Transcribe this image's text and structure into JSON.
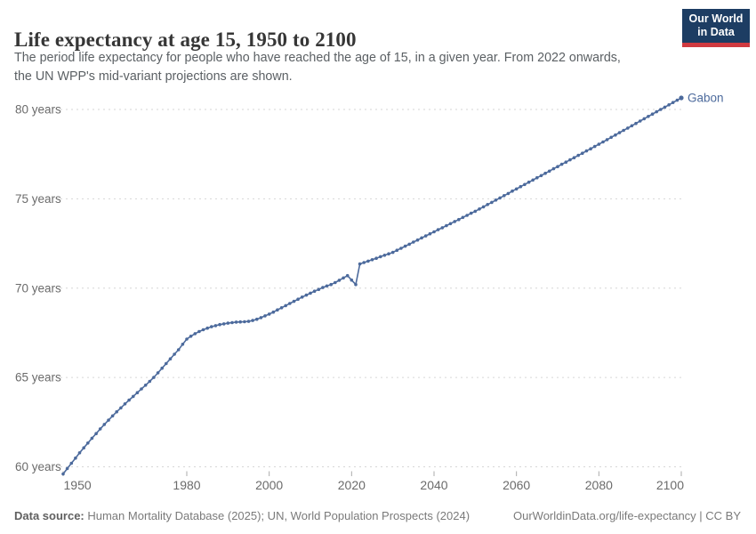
{
  "header": {
    "title": "Life expectancy at age 15, 1950 to 2100",
    "subtitle_line1": "The period life expectancy for people who have reached the age of 15, in a given year. From 2022 onwards,",
    "subtitle_line2": "the UN WPP's mid-variant projections are shown."
  },
  "logo": {
    "line1": "Our World",
    "line2": "in Data",
    "bg_color": "#1d3d63",
    "bar_color": "#d03a40"
  },
  "footer": {
    "datasource_label": "Data source:",
    "datasource_text": " Human Mortality Database (2025); UN, World Population Prospects (2024)",
    "link_text": "OurWorldinData.org/life-expectancy | CC BY"
  },
  "chart_data": {
    "type": "line",
    "title": "Life expectancy at age 15, 1950 to 2100",
    "entity_label": "Gabon",
    "line_color": "#4C6A9C",
    "grid_color": "#d6d6d6",
    "tick_color": "#ababab",
    "axis_text_color": "#6b6b6b",
    "legend_position": "end-of-line",
    "grid": "dashed-horizontal",
    "x_axis": {
      "min": 1950,
      "max": 2100,
      "ticks": [
        1950,
        1980,
        2000,
        2020,
        2040,
        2060,
        2080,
        2100
      ]
    },
    "y_axis": {
      "min": 59.5,
      "max": 81,
      "ticks": [
        60,
        65,
        70,
        75,
        80
      ],
      "tick_labels": [
        "60 years",
        "65 years",
        "70 years",
        "75 years",
        "80 years"
      ]
    },
    "series": [
      {
        "name": "Gabon",
        "points": [
          [
            1950,
            59.6
          ],
          [
            1951,
            59.9
          ],
          [
            1952,
            60.2
          ],
          [
            1953,
            60.49
          ],
          [
            1954,
            60.78
          ],
          [
            1955,
            61.06
          ],
          [
            1956,
            61.33
          ],
          [
            1957,
            61.6
          ],
          [
            1958,
            61.86
          ],
          [
            1959,
            62.12
          ],
          [
            1960,
            62.37
          ],
          [
            1961,
            62.61
          ],
          [
            1962,
            62.85
          ],
          [
            1963,
            63.08
          ],
          [
            1964,
            63.3
          ],
          [
            1965,
            63.52
          ],
          [
            1966,
            63.73
          ],
          [
            1967,
            63.94
          ],
          [
            1968,
            64.15
          ],
          [
            1969,
            64.36
          ],
          [
            1970,
            64.57
          ],
          [
            1971,
            64.78
          ],
          [
            1972,
            65.0
          ],
          [
            1973,
            65.26
          ],
          [
            1974,
            65.52
          ],
          [
            1975,
            65.78
          ],
          [
            1976,
            66.04
          ],
          [
            1977,
            66.3
          ],
          [
            1978,
            66.55
          ],
          [
            1979,
            66.86
          ],
          [
            1980,
            67.15
          ],
          [
            1981,
            67.31
          ],
          [
            1982,
            67.45
          ],
          [
            1983,
            67.57
          ],
          [
            1984,
            67.67
          ],
          [
            1985,
            67.76
          ],
          [
            1986,
            67.84
          ],
          [
            1987,
            67.9
          ],
          [
            1988,
            67.96
          ],
          [
            1989,
            68.0
          ],
          [
            1990,
            68.04
          ],
          [
            1991,
            68.07
          ],
          [
            1992,
            68.1
          ],
          [
            1993,
            68.11
          ],
          [
            1994,
            68.12
          ],
          [
            1995,
            68.14
          ],
          [
            1996,
            68.19
          ],
          [
            1997,
            68.26
          ],
          [
            1998,
            68.35
          ],
          [
            1999,
            68.45
          ],
          [
            2000,
            68.55
          ],
          [
            2001,
            68.66
          ],
          [
            2002,
            68.78
          ],
          [
            2003,
            68.9
          ],
          [
            2004,
            69.02
          ],
          [
            2005,
            69.14
          ],
          [
            2006,
            69.26
          ],
          [
            2007,
            69.38
          ],
          [
            2008,
            69.5
          ],
          [
            2009,
            69.61
          ],
          [
            2010,
            69.72
          ],
          [
            2011,
            69.83
          ],
          [
            2012,
            69.93
          ],
          [
            2013,
            70.03
          ],
          [
            2014,
            70.12
          ],
          [
            2015,
            70.2
          ],
          [
            2016,
            70.31
          ],
          [
            2017,
            70.44
          ],
          [
            2018,
            70.57
          ],
          [
            2019,
            70.7
          ],
          [
            2020,
            70.45
          ],
          [
            2021,
            70.2
          ],
          [
            2022,
            71.35
          ],
          [
            2023,
            71.43
          ],
          [
            2024,
            71.51
          ],
          [
            2025,
            71.59
          ],
          [
            2026,
            71.67
          ],
          [
            2027,
            71.76
          ],
          [
            2028,
            71.84
          ],
          [
            2029,
            71.92
          ],
          [
            2030,
            72.0
          ],
          [
            2031,
            72.12
          ],
          [
            2032,
            72.23
          ],
          [
            2033,
            72.35
          ],
          [
            2034,
            72.46
          ],
          [
            2035,
            72.58
          ],
          [
            2036,
            72.69
          ],
          [
            2037,
            72.81
          ],
          [
            2038,
            72.92
          ],
          [
            2039,
            73.04
          ],
          [
            2040,
            73.15
          ],
          [
            2041,
            73.27
          ],
          [
            2042,
            73.38
          ],
          [
            2043,
            73.5
          ],
          [
            2044,
            73.61
          ],
          [
            2045,
            73.73
          ],
          [
            2046,
            73.84
          ],
          [
            2047,
            73.96
          ],
          [
            2048,
            74.07
          ],
          [
            2049,
            74.19
          ],
          [
            2050,
            74.3
          ],
          [
            2051,
            74.43
          ],
          [
            2052,
            74.55
          ],
          [
            2053,
            74.68
          ],
          [
            2054,
            74.8
          ],
          [
            2055,
            74.93
          ],
          [
            2056,
            75.05
          ],
          [
            2057,
            75.18
          ],
          [
            2058,
            75.3
          ],
          [
            2059,
            75.43
          ],
          [
            2060,
            75.55
          ],
          [
            2061,
            75.68
          ],
          [
            2062,
            75.8
          ],
          [
            2063,
            75.93
          ],
          [
            2064,
            76.05
          ],
          [
            2065,
            76.18
          ],
          [
            2066,
            76.3
          ],
          [
            2067,
            76.43
          ],
          [
            2068,
            76.55
          ],
          [
            2069,
            76.68
          ],
          [
            2070,
            76.8
          ],
          [
            2071,
            76.93
          ],
          [
            2072,
            77.05
          ],
          [
            2073,
            77.18
          ],
          [
            2074,
            77.3
          ],
          [
            2075,
            77.43
          ],
          [
            2076,
            77.55
          ],
          [
            2077,
            77.68
          ],
          [
            2078,
            77.8
          ],
          [
            2079,
            77.93
          ],
          [
            2080,
            78.05
          ],
          [
            2081,
            78.18
          ],
          [
            2082,
            78.31
          ],
          [
            2083,
            78.44
          ],
          [
            2084,
            78.57
          ],
          [
            2085,
            78.7
          ],
          [
            2086,
            78.83
          ],
          [
            2087,
            78.96
          ],
          [
            2088,
            79.09
          ],
          [
            2089,
            79.22
          ],
          [
            2090,
            79.35
          ],
          [
            2091,
            79.48
          ],
          [
            2092,
            79.61
          ],
          [
            2093,
            79.74
          ],
          [
            2094,
            79.87
          ],
          [
            2095,
            80.0
          ],
          [
            2096,
            80.13
          ],
          [
            2097,
            80.26
          ],
          [
            2098,
            80.39
          ],
          [
            2099,
            80.52
          ],
          [
            2100,
            80.65
          ]
        ]
      }
    ]
  }
}
